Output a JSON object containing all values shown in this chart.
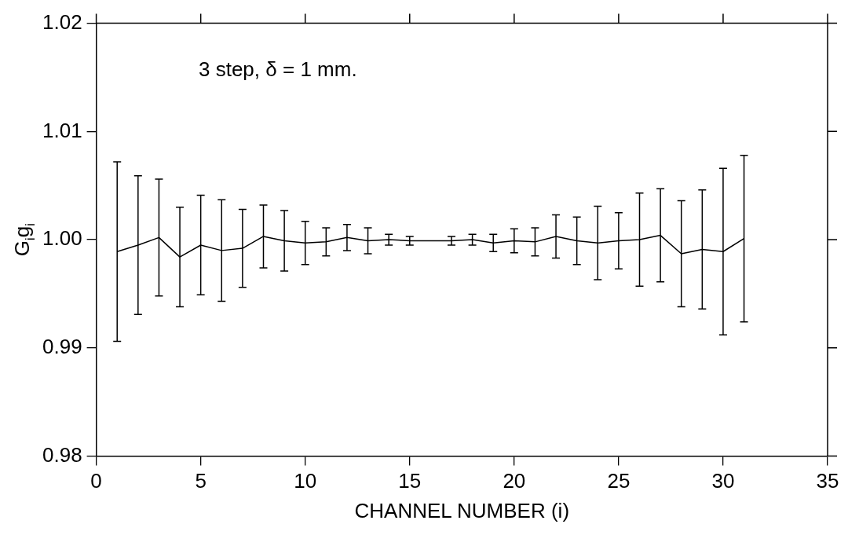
{
  "chart_data": {
    "type": "line",
    "xlabel": "CHANNEL NUMBER (i)",
    "ylabel": "G$_{i}$g$_{i}$",
    "annotations": [
      "3 step, δ = 1 mm."
    ],
    "x": [
      1,
      2,
      3,
      4,
      5,
      6,
      7,
      8,
      9,
      10,
      11,
      12,
      13,
      14,
      15,
      17,
      18,
      19,
      20,
      21,
      22,
      23,
      24,
      25,
      26,
      27,
      28,
      29,
      30,
      31
    ],
    "series": [
      {
        "color": "#000000",
        "values": [
          0.9989,
          0.9995,
          1.0002,
          0.9984,
          0.9995,
          0.999,
          0.9992,
          1.0003,
          0.9999,
          0.9997,
          0.9998,
          1.0002,
          0.9999,
          1.0,
          0.9999,
          0.9999,
          1.0,
          0.9997,
          0.9999,
          0.9998,
          1.0003,
          0.9999,
          0.9997,
          0.9999,
          1.0,
          1.0004,
          0.9987,
          0.9991,
          0.9989,
          1.0001
        ],
        "errors": [
          0.0083,
          0.0064,
          0.0054,
          0.0046,
          0.0046,
          0.0047,
          0.0036,
          0.0029,
          0.0028,
          0.002,
          0.0013,
          0.0012,
          0.0012,
          0.0005,
          0.0004,
          0.0004,
          0.0005,
          0.0008,
          0.0011,
          0.0013,
          0.002,
          0.0022,
          0.0034,
          0.0026,
          0.0043,
          0.0043,
          0.0049,
          0.0055,
          0.0077,
          0.0077
        ]
      }
    ],
    "xlim": [
      0,
      35
    ],
    "xticks": [
      0,
      5,
      10,
      15,
      20,
      25,
      30,
      35
    ],
    "ylim": [
      0.98,
      1.02
    ],
    "yticks": [
      0.98,
      0.99,
      {
        "value": 1,
        "label": "1.00"
      },
      1.01,
      1.02
    ],
    "grid": false,
    "legend": false,
    "marker": "none",
    "line_style": "solid"
  }
}
